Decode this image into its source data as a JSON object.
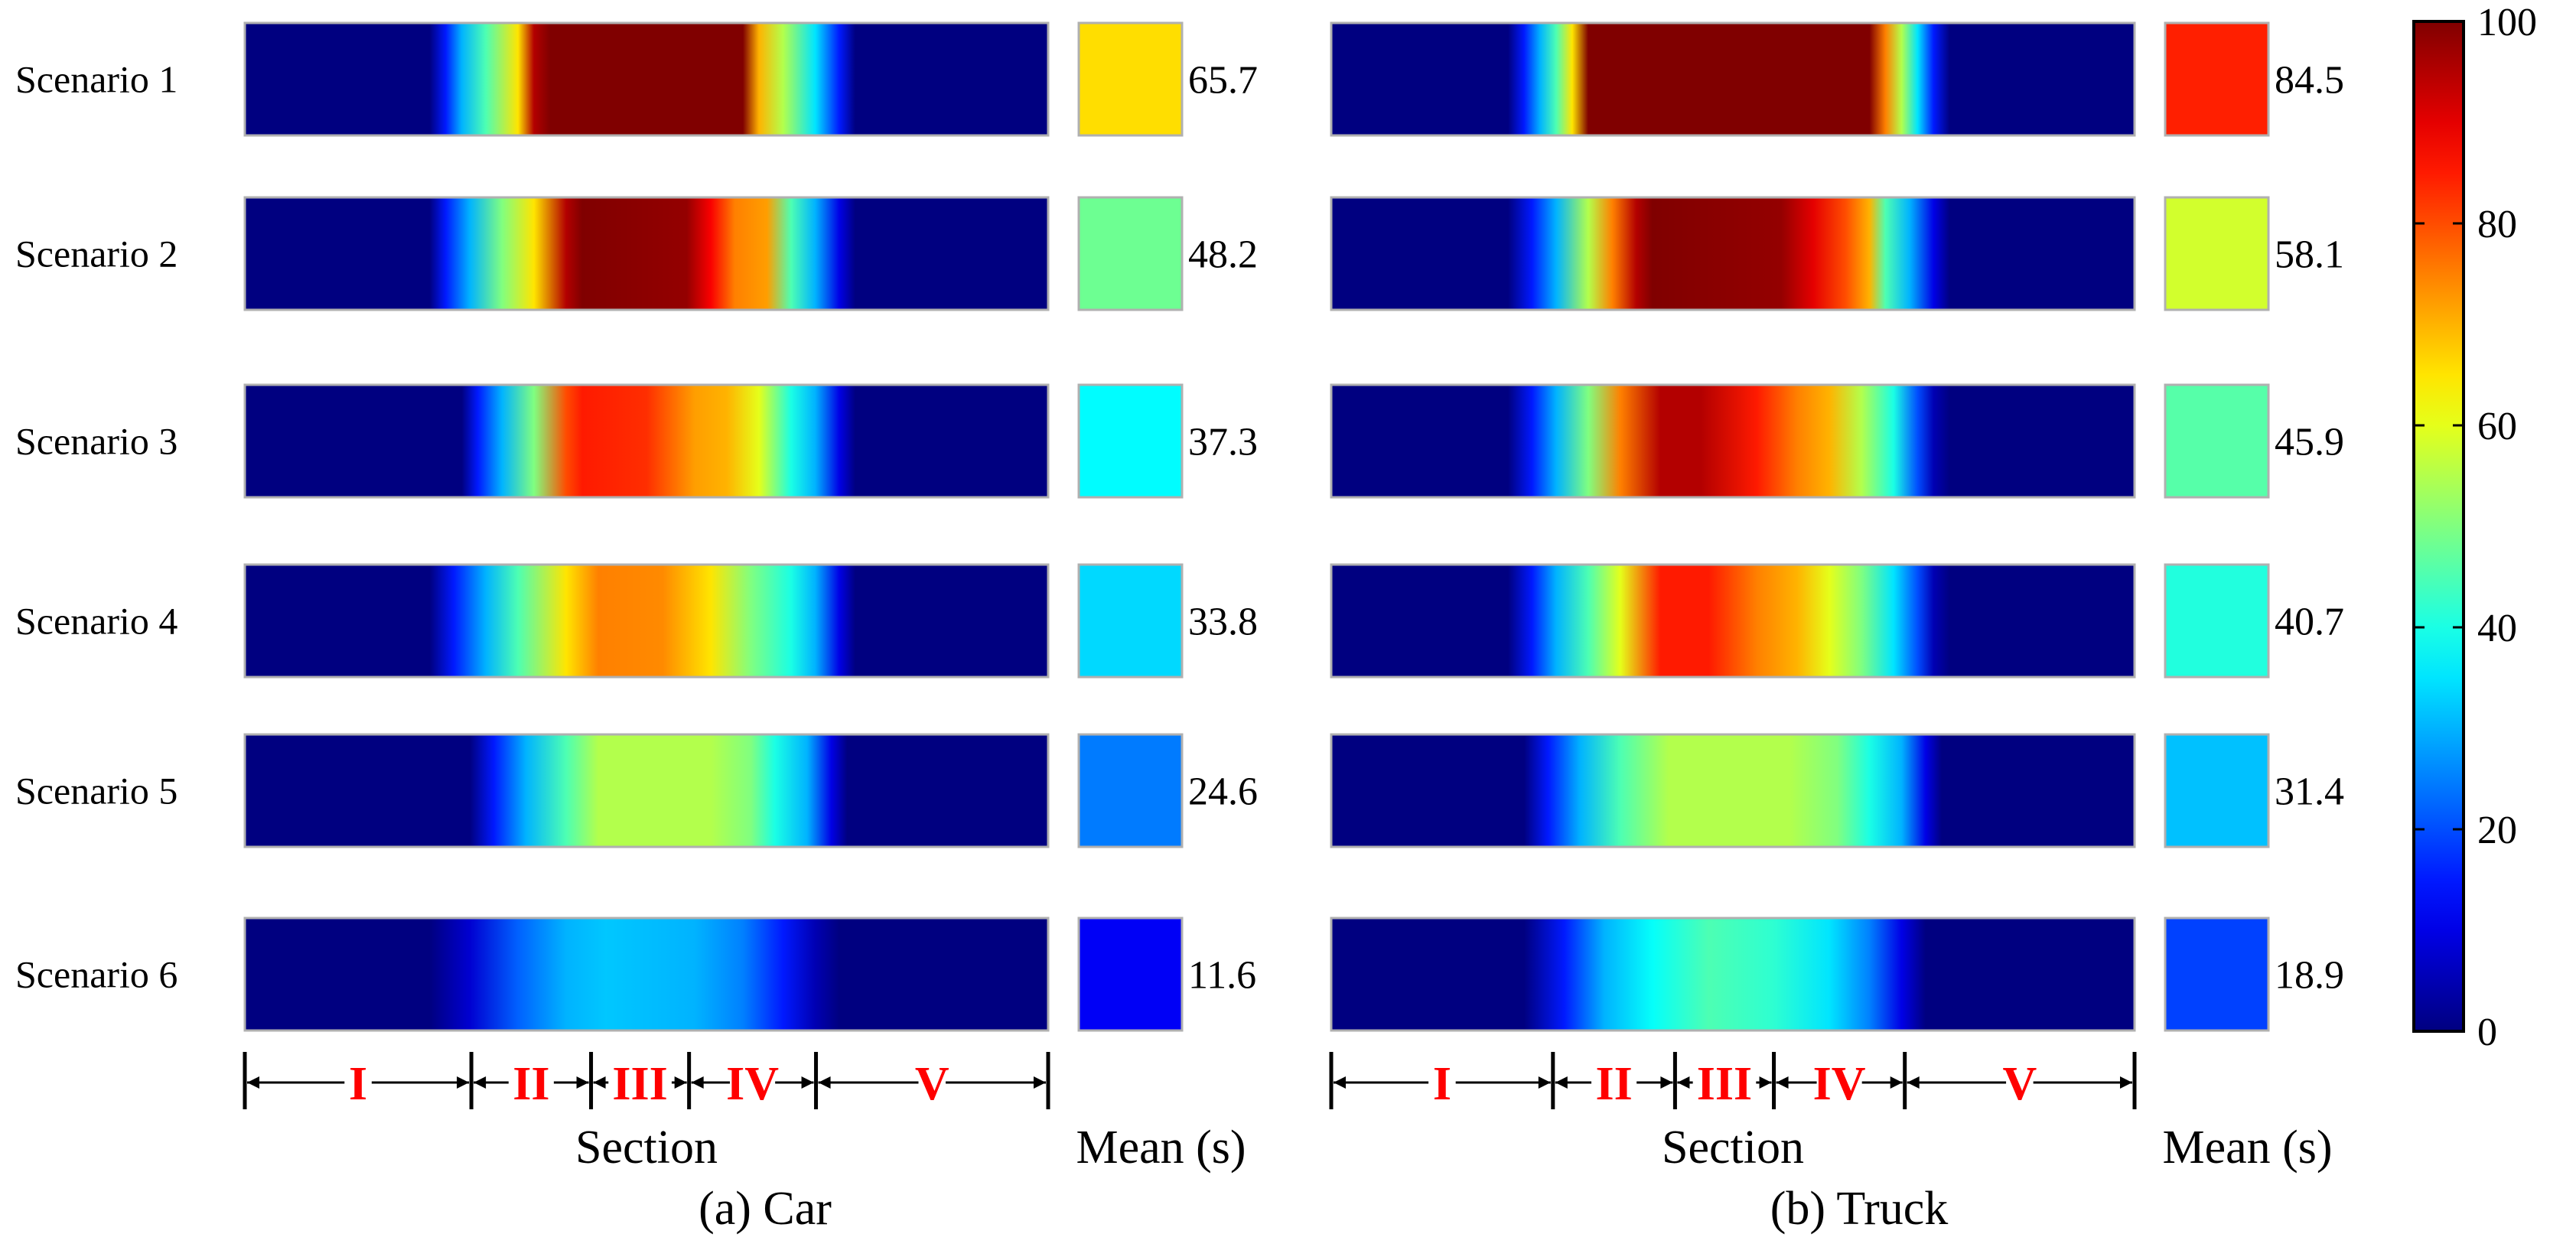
{
  "chart_data": {
    "type": "heatmap",
    "colorbar": {
      "min": 0,
      "max": 100,
      "ticks": [
        0,
        20,
        40,
        60,
        80,
        100
      ],
      "colormap": "jet"
    },
    "section_axis_label": "Section",
    "mean_axis_label": "Mean (s)",
    "sections": [
      "I",
      "II",
      "III",
      "IV",
      "V"
    ],
    "panels": [
      {
        "name": "car",
        "caption": "(a) Car",
        "section_boundaries": [
          0,
          0.282,
          0.431,
          0.553,
          0.711,
          1.0
        ],
        "scenarios": [
          {
            "label": "Scenario 1",
            "mean": 65.7,
            "mean_text": "65.7",
            "profile": [
              [
                0,
                0
              ],
              [
                0.23,
                0
              ],
              [
                0.25,
                15
              ],
              [
                0.27,
                30
              ],
              [
                0.3,
                45
              ],
              [
                0.34,
                65
              ],
              [
                0.36,
                95
              ],
              [
                0.38,
                100
              ],
              [
                0.62,
                100
              ],
              [
                0.64,
                70
              ],
              [
                0.67,
                55
              ],
              [
                0.71,
                35
              ],
              [
                0.74,
                15
              ],
              [
                0.76,
                0
              ],
              [
                1,
                0
              ]
            ]
          },
          {
            "label": "Scenario 2",
            "mean": 48.2,
            "mean_text": "48.2",
            "profile": [
              [
                0,
                0
              ],
              [
                0.23,
                0
              ],
              [
                0.25,
                15
              ],
              [
                0.28,
                30
              ],
              [
                0.32,
                50
              ],
              [
                0.36,
                65
              ],
              [
                0.4,
                95
              ],
              [
                0.42,
                100
              ],
              [
                0.55,
                98
              ],
              [
                0.58,
                88
              ],
              [
                0.61,
                75
              ],
              [
                0.65,
                72
              ],
              [
                0.68,
                45
              ],
              [
                0.71,
                30
              ],
              [
                0.74,
                10
              ],
              [
                0.76,
                0
              ],
              [
                1,
                0
              ]
            ]
          },
          {
            "label": "Scenario 3",
            "mean": 37.3,
            "mean_text": "37.3",
            "profile": [
              [
                0,
                0
              ],
              [
                0.27,
                0
              ],
              [
                0.29,
                15
              ],
              [
                0.32,
                30
              ],
              [
                0.36,
                50
              ],
              [
                0.4,
                80
              ],
              [
                0.42,
                85
              ],
              [
                0.5,
                83
              ],
              [
                0.56,
                72
              ],
              [
                0.6,
                70
              ],
              [
                0.64,
                60
              ],
              [
                0.68,
                40
              ],
              [
                0.71,
                30
              ],
              [
                0.74,
                10
              ],
              [
                0.76,
                0
              ],
              [
                1,
                0
              ]
            ]
          },
          {
            "label": "Scenario 4",
            "mean": 33.8,
            "mean_text": "33.8",
            "profile": [
              [
                0,
                0
              ],
              [
                0.23,
                0
              ],
              [
                0.26,
                15
              ],
              [
                0.3,
                30
              ],
              [
                0.34,
                45
              ],
              [
                0.4,
                65
              ],
              [
                0.44,
                75
              ],
              [
                0.52,
                74
              ],
              [
                0.58,
                65
              ],
              [
                0.63,
                50
              ],
              [
                0.68,
                40
              ],
              [
                0.71,
                30
              ],
              [
                0.74,
                10
              ],
              [
                0.76,
                0
              ],
              [
                1,
                0
              ]
            ]
          },
          {
            "label": "Scenario 5",
            "mean": 24.6,
            "mean_text": "24.6",
            "profile": [
              [
                0,
                0
              ],
              [
                0.28,
                0
              ],
              [
                0.31,
                15
              ],
              [
                0.35,
                30
              ],
              [
                0.4,
                45
              ],
              [
                0.44,
                55
              ],
              [
                0.58,
                55
              ],
              [
                0.63,
                50
              ],
              [
                0.66,
                40
              ],
              [
                0.7,
                30
              ],
              [
                0.73,
                10
              ],
              [
                0.75,
                0
              ],
              [
                1,
                0
              ]
            ]
          },
          {
            "label": "Scenario 6",
            "mean": 11.6,
            "mean_text": "11.6",
            "profile": [
              [
                0,
                0
              ],
              [
                0.23,
                0
              ],
              [
                0.28,
                8
              ],
              [
                0.34,
                22
              ],
              [
                0.4,
                30
              ],
              [
                0.45,
                32
              ],
              [
                0.56,
                30
              ],
              [
                0.62,
                25
              ],
              [
                0.67,
                15
              ],
              [
                0.71,
                5
              ],
              [
                0.74,
                0
              ],
              [
                1,
                0
              ]
            ]
          }
        ]
      },
      {
        "name": "truck",
        "caption": "(b) Truck",
        "section_boundaries": [
          0,
          0.276,
          0.428,
          0.551,
          0.714,
          1.0
        ],
        "scenarios": [
          {
            "label": "Scenario 1",
            "mean": 84.5,
            "mean_text": "84.5",
            "profile": [
              [
                0,
                0
              ],
              [
                0.22,
                0
              ],
              [
                0.24,
                15
              ],
              [
                0.26,
                30
              ],
              [
                0.28,
                45
              ],
              [
                0.3,
                65
              ],
              [
                0.32,
                100
              ],
              [
                0.67,
                100
              ],
              [
                0.69,
                75
              ],
              [
                0.71,
                55
              ],
              [
                0.73,
                35
              ],
              [
                0.75,
                15
              ],
              [
                0.77,
                0
              ],
              [
                1,
                0
              ]
            ]
          },
          {
            "label": "Scenario 2",
            "mean": 58.1,
            "mean_text": "58.1",
            "profile": [
              [
                0,
                0
              ],
              [
                0.22,
                0
              ],
              [
                0.25,
                15
              ],
              [
                0.28,
                30
              ],
              [
                0.32,
                55
              ],
              [
                0.35,
                75
              ],
              [
                0.38,
                95
              ],
              [
                0.4,
                100
              ],
              [
                0.56,
                98
              ],
              [
                0.6,
                90
              ],
              [
                0.64,
                80
              ],
              [
                0.67,
                70
              ],
              [
                0.69,
                45
              ],
              [
                0.72,
                30
              ],
              [
                0.75,
                10
              ],
              [
                0.77,
                0
              ],
              [
                1,
                0
              ]
            ]
          },
          {
            "label": "Scenario 3",
            "mean": 45.9,
            "mean_text": "45.9",
            "profile": [
              [
                0,
                0
              ],
              [
                0.22,
                0
              ],
              [
                0.25,
                15
              ],
              [
                0.28,
                30
              ],
              [
                0.32,
                50
              ],
              [
                0.36,
                75
              ],
              [
                0.41,
                95
              ],
              [
                0.46,
                95
              ],
              [
                0.53,
                85
              ],
              [
                0.58,
                75
              ],
              [
                0.62,
                70
              ],
              [
                0.66,
                55
              ],
              [
                0.7,
                40
              ],
              [
                0.73,
                20
              ],
              [
                0.75,
                5
              ],
              [
                0.77,
                0
              ],
              [
                1,
                0
              ]
            ]
          },
          {
            "label": "Scenario 4",
            "mean": 40.7,
            "mean_text": "40.7",
            "profile": [
              [
                0,
                0
              ],
              [
                0.22,
                0
              ],
              [
                0.25,
                15
              ],
              [
                0.28,
                30
              ],
              [
                0.32,
                45
              ],
              [
                0.36,
                60
              ],
              [
                0.41,
                85
              ],
              [
                0.47,
                85
              ],
              [
                0.53,
                75
              ],
              [
                0.58,
                70
              ],
              [
                0.62,
                60
              ],
              [
                0.66,
                50
              ],
              [
                0.7,
                35
              ],
              [
                0.73,
                20
              ],
              [
                0.75,
                5
              ],
              [
                0.77,
                0
              ],
              [
                1,
                0
              ]
            ]
          },
          {
            "label": "Scenario 5",
            "mean": 31.4,
            "mean_text": "31.4",
            "profile": [
              [
                0,
                0
              ],
              [
                0.24,
                0
              ],
              [
                0.27,
                15
              ],
              [
                0.31,
                30
              ],
              [
                0.36,
                45
              ],
              [
                0.42,
                55
              ],
              [
                0.57,
                55
              ],
              [
                0.63,
                50
              ],
              [
                0.67,
                40
              ],
              [
                0.71,
                30
              ],
              [
                0.74,
                10
              ],
              [
                0.76,
                0
              ],
              [
                1,
                0
              ]
            ]
          },
          {
            "label": "Scenario 6",
            "mean": 18.9,
            "mean_text": "18.9",
            "profile": [
              [
                0,
                0
              ],
              [
                0.24,
                0
              ],
              [
                0.29,
                15
              ],
              [
                0.34,
                30
              ],
              [
                0.4,
                38
              ],
              [
                0.47,
                45
              ],
              [
                0.55,
                42
              ],
              [
                0.62,
                35
              ],
              [
                0.67,
                25
              ],
              [
                0.71,
                10
              ],
              [
                0.74,
                0
              ],
              [
                1,
                0
              ]
            ]
          }
        ]
      }
    ]
  }
}
